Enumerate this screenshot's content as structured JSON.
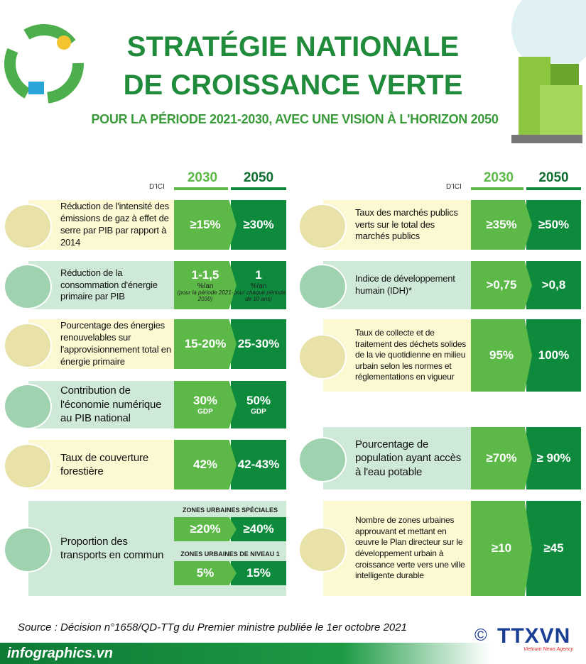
{
  "header": {
    "title_line1": "STRATÉGIE NATIONALE",
    "title_line2": "DE CROISSANCE VERTE",
    "subtitle": "POUR LA PÉRIODE 2021-2030, AVEC UNE VISION À L'HORIZON 2050"
  },
  "left": {
    "header": {
      "label": "D'ICI",
      "col1": "2030",
      "col2": "2050"
    },
    "items": [
      {
        "text": "Réduction de l'intensité des émissions de gaz à effet de serre par PIB  par rapport à 2014",
        "d2030": [
          "≥15%"
        ],
        "d2050": [
          "≥30%"
        ]
      },
      {
        "text": "Réduction de la consommation d'énergie primaire par PIB",
        "d2030": [
          "1-1,5",
          "%/an",
          "(pour la période 2021-2030)"
        ],
        "d2050": [
          "1",
          "%/an",
          "(pour chaque période de 10 ans)"
        ]
      },
      {
        "text": "Pourcentage des énergies renouvelables sur l'approvisionnement total en énergie primaire",
        "d2030": [
          "15-20%"
        ],
        "d2050": [
          "25-30%"
        ]
      },
      {
        "text": "Contribution de l'économie numérique au PIB national",
        "d2030": [
          "30%",
          "GDP"
        ],
        "d2050": [
          "50%",
          "GDP"
        ]
      },
      {
        "text": "Taux de couverture forestière",
        "d2030": [
          "42%"
        ],
        "d2050": [
          "42-43%"
        ]
      },
      {
        "text": "Proportion des transports en commun",
        "groups": [
          {
            "label": "ZONES URBAINES SPÉCIALES",
            "d2030": [
              "≥20%"
            ],
            "d2050": [
              "≥40%"
            ]
          },
          {
            "label": "ZONES URBAINES DE NIVEAU 1",
            "d2030": [
              "5%"
            ],
            "d2050": [
              "15%"
            ]
          }
        ]
      }
    ]
  },
  "right": {
    "header": {
      "label": "D'ICI",
      "col1": "2030",
      "col2": "2050"
    },
    "items": [
      {
        "text": "Taux des marchés publics verts sur le total des marchés publics",
        "d2030": [
          "≥35%"
        ],
        "d2050": [
          "≥50%"
        ]
      },
      {
        "text": "Indice de développement humain (IDH)*",
        "d2030": [
          ">0,75"
        ],
        "d2050": [
          ">0,8"
        ]
      },
      {
        "text": "Taux de collecte et de traitement des déchets solides de la vie quotidienne en milieu urbain selon les normes et réglementations en vigueur",
        "d2030": [
          "95%"
        ],
        "d2050": [
          "100%"
        ]
      },
      {
        "text": "Pourcentage de population ayant accès à l'eau potable",
        "d2030": [
          "≥70%"
        ],
        "d2050": [
          "≥ 90%"
        ]
      },
      {
        "text": "Nombre de zones urbaines approuvant et mettant en œuvre le Plan directeur sur le développement urbain à croissance verte vers une ville intelligente durable",
        "d2030": [
          "≥10"
        ],
        "d2050": [
          "≥45"
        ]
      }
    ]
  },
  "footer": {
    "source": "Source : Décision n°1658/QD-TTg du Premier ministre publiée le  1er octobre 2021",
    "site": "infographics.vn",
    "copyright": "©",
    "logo": "TTXVN",
    "agency": "Vietnam News Agency"
  }
}
